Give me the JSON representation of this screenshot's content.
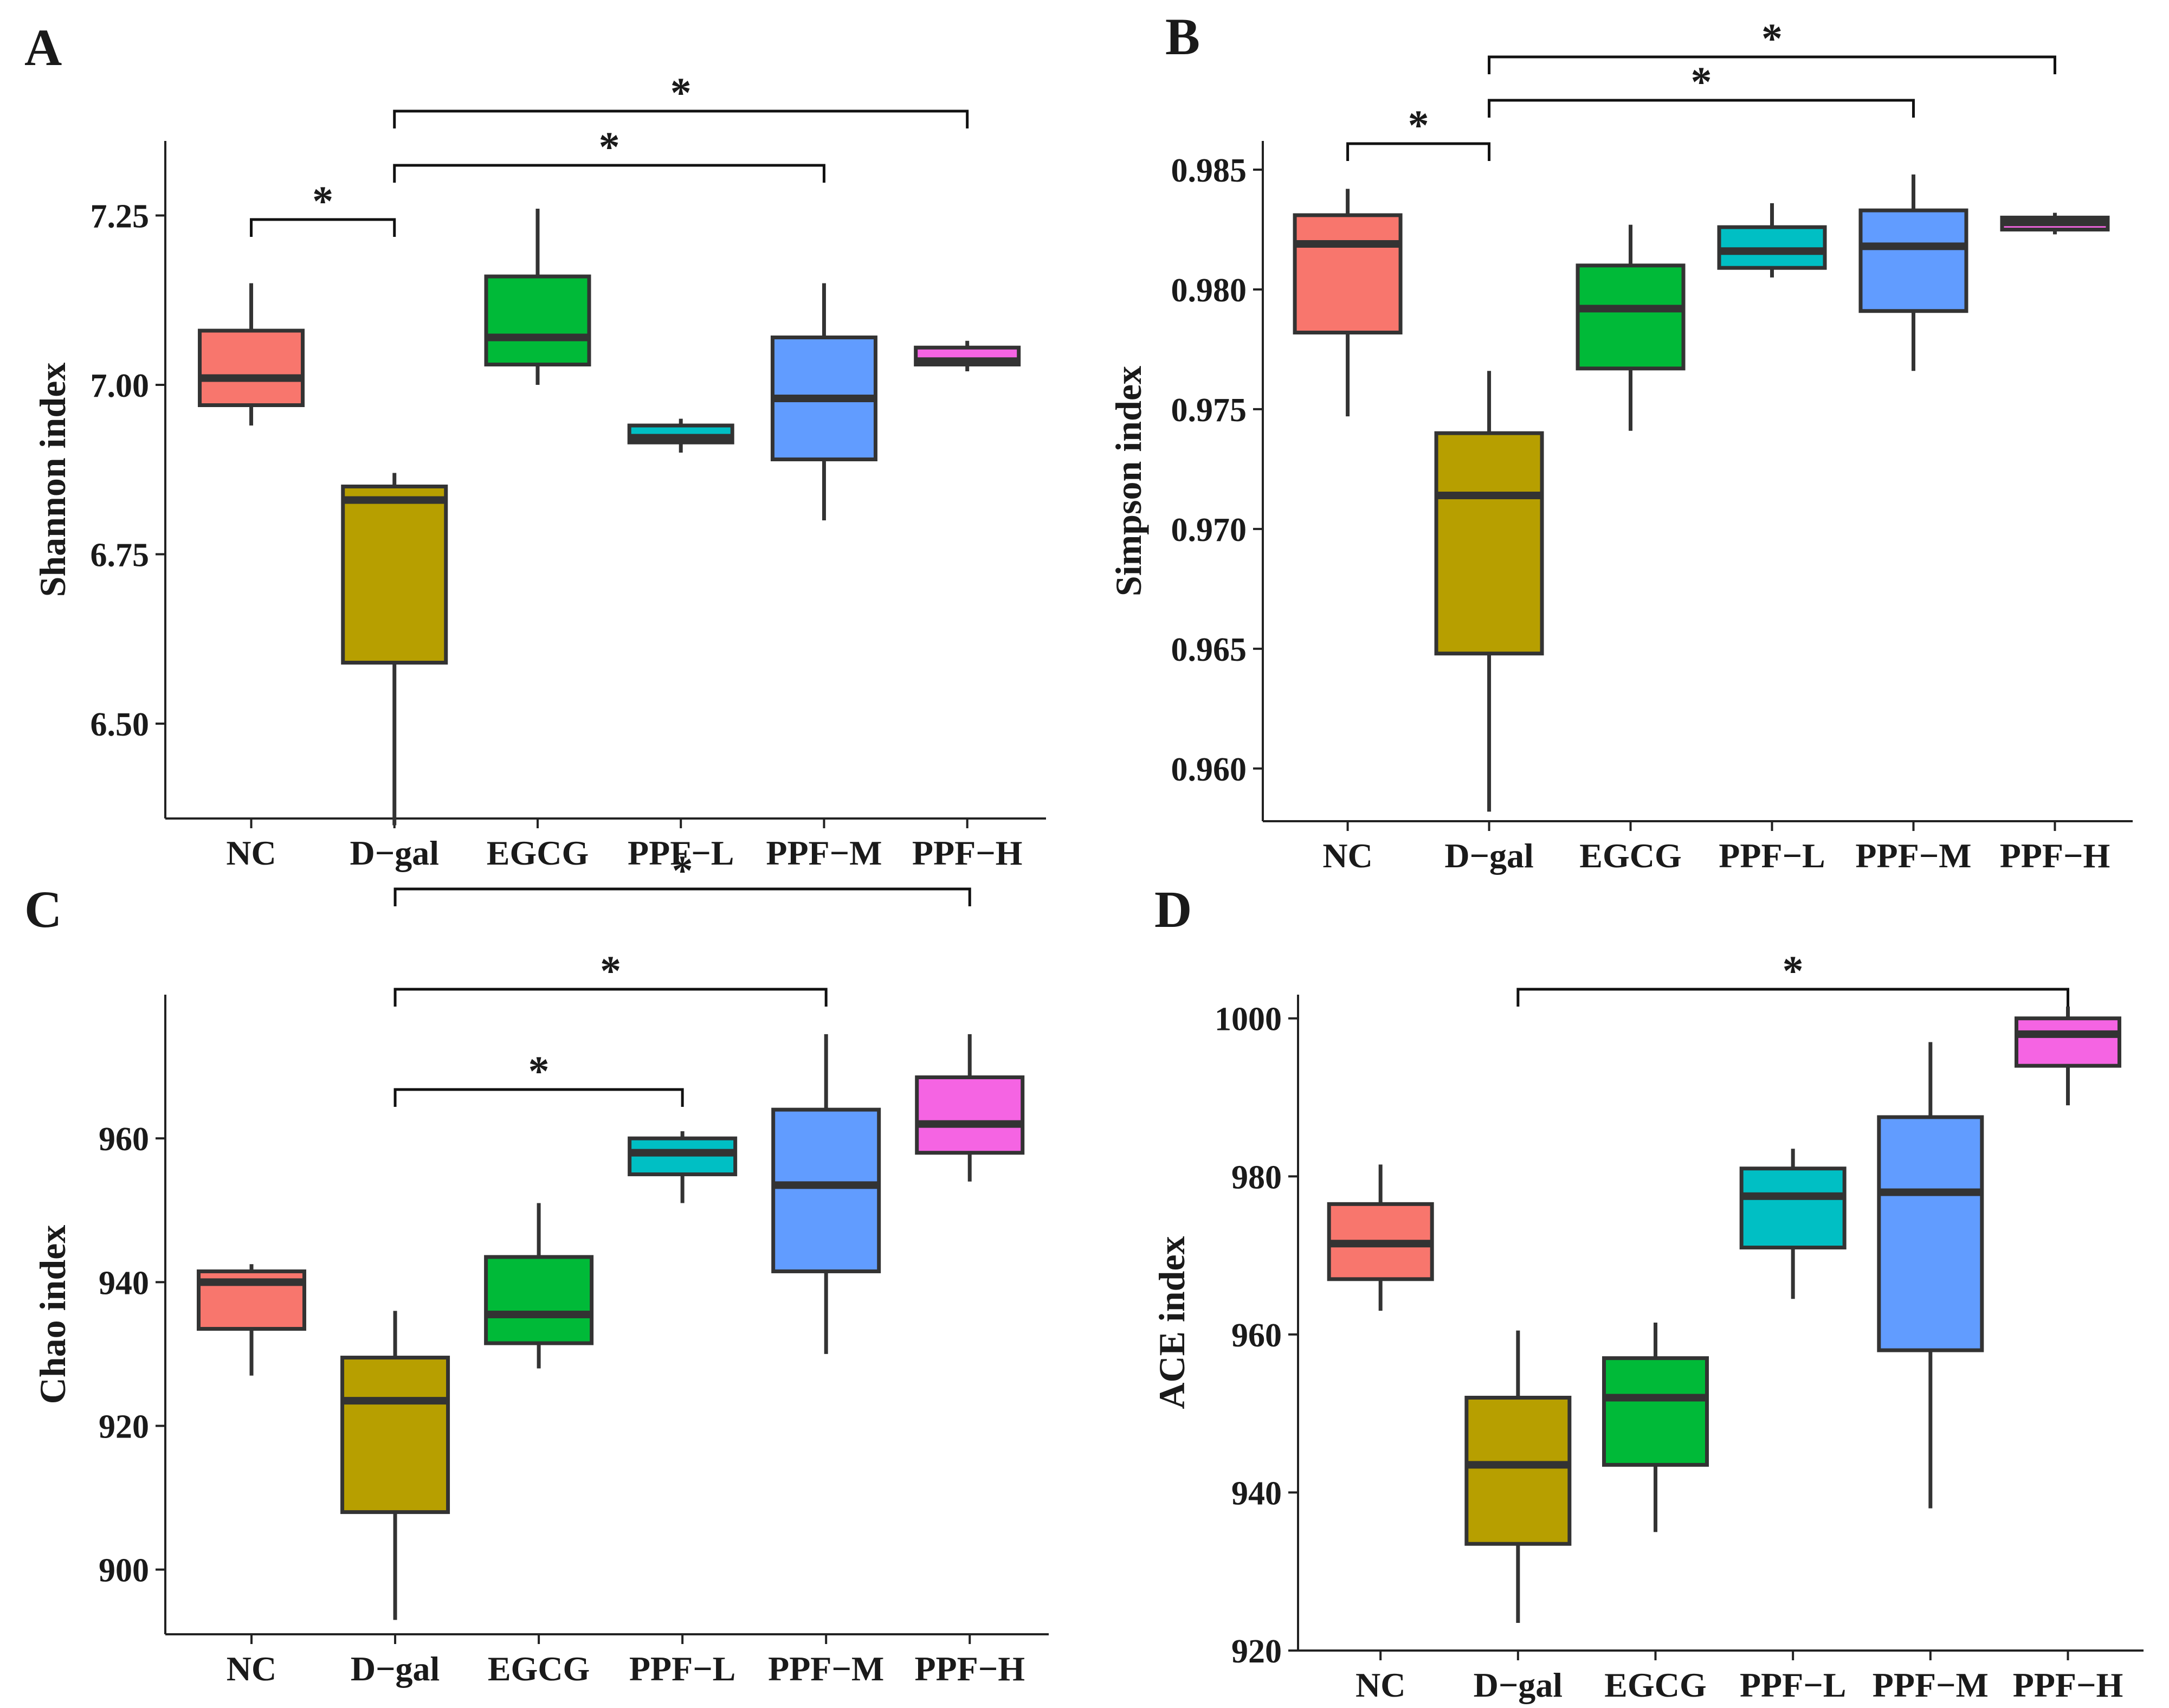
{
  "chart_data": [
    {
      "panel_label": "A",
      "type": "box",
      "title": "",
      "xlabel": "",
      "ylabel": "Shannon index",
      "categories": [
        "NC",
        "D−gal",
        "EGCG",
        "PPF−L",
        "PPF−M",
        "PPF−H"
      ],
      "colors": [
        "#F8766D",
        "#B79F00",
        "#00BA38",
        "#00BFC4",
        "#619CFF",
        "#F564E3"
      ],
      "ylim": [
        6.36,
        7.36
      ],
      "yticks": [
        6.5,
        6.75,
        7.0,
        7.25
      ],
      "ytick_labels": [
        "6.50",
        "6.75",
        "7.00",
        "7.25"
      ],
      "boxes": [
        {
          "min": 6.94,
          "q1": 6.97,
          "median": 7.01,
          "q3": 7.08,
          "max": 7.15
        },
        {
          "min": 6.35,
          "q1": 6.59,
          "median": 6.83,
          "q3": 6.85,
          "max": 6.87
        },
        {
          "min": 7.0,
          "q1": 7.03,
          "median": 7.07,
          "q3": 7.16,
          "max": 7.26
        },
        {
          "min": 6.9,
          "q1": 6.915,
          "median": 6.922,
          "q3": 6.94,
          "max": 6.95
        },
        {
          "min": 6.8,
          "q1": 6.89,
          "median": 6.98,
          "q3": 7.07,
          "max": 7.15
        },
        {
          "min": 7.02,
          "q1": 7.03,
          "median": 7.035,
          "q3": 7.055,
          "max": 7.065
        }
      ],
      "significance": [
        {
          "from": 0,
          "to": 1,
          "level": 1,
          "label": "*"
        },
        {
          "from": 1,
          "to": 4,
          "level": 2,
          "label": "*"
        },
        {
          "from": 1,
          "to": 5,
          "level": 3,
          "label": "*"
        }
      ]
    },
    {
      "panel_label": "B",
      "type": "box",
      "title": "",
      "xlabel": "",
      "ylabel": "Simpson index",
      "categories": [
        "NC",
        "D−gal",
        "EGCG",
        "PPF−L",
        "PPF−M",
        "PPF−H"
      ],
      "colors": [
        "#F8766D",
        "#B79F00",
        "#00BA38",
        "#00BFC4",
        "#619CFF",
        "#F564E3"
      ],
      "ylim": [
        0.9578,
        0.9862
      ],
      "yticks": [
        0.96,
        0.965,
        0.97,
        0.975,
        0.98,
        0.985
      ],
      "ytick_labels": [
        "0.960",
        "0.965",
        "0.970",
        "0.975",
        "0.980",
        "0.985"
      ],
      "boxes": [
        {
          "min": 0.9747,
          "q1": 0.9782,
          "median": 0.9819,
          "q3": 0.9831,
          "max": 0.9842
        },
        {
          "min": 0.9582,
          "q1": 0.9648,
          "median": 0.9714,
          "q3": 0.974,
          "max": 0.9766
        },
        {
          "min": 0.9741,
          "q1": 0.9767,
          "median": 0.9792,
          "q3": 0.981,
          "max": 0.9827
        },
        {
          "min": 0.9805,
          "q1": 0.9809,
          "median": 0.9816,
          "q3": 0.9826,
          "max": 0.9836
        },
        {
          "min": 0.9766,
          "q1": 0.9791,
          "median": 0.9818,
          "q3": 0.9833,
          "max": 0.9848
        },
        {
          "min": 0.9823,
          "q1": 0.9825,
          "median": 0.9828,
          "q3": 0.983,
          "max": 0.9832
        }
      ],
      "significance": [
        {
          "from": 0,
          "to": 1,
          "level": 1,
          "label": "*"
        },
        {
          "from": 1,
          "to": 4,
          "level": 2,
          "label": "*"
        },
        {
          "from": 1,
          "to": 5,
          "level": 3,
          "label": "*"
        }
      ]
    },
    {
      "panel_label": "C",
      "type": "box",
      "title": "",
      "xlabel": "",
      "ylabel": "Chao index",
      "categories": [
        "NC",
        "D−gal",
        "EGCG",
        "PPF−L",
        "PPF−M",
        "PPF−H"
      ],
      "colors": [
        "#F8766D",
        "#B79F00",
        "#00BA38",
        "#00BFC4",
        "#619CFF",
        "#F564E3"
      ],
      "ylim": [
        891,
        980
      ],
      "yticks": [
        900,
        920,
        940,
        960
      ],
      "ytick_labels": [
        "900",
        "920",
        "940",
        "960"
      ],
      "boxes": [
        {
          "min": 927,
          "q1": 933.5,
          "median": 940,
          "q3": 941.5,
          "max": 942.5
        },
        {
          "min": 893,
          "q1": 908,
          "median": 923.5,
          "q3": 929.5,
          "max": 936
        },
        {
          "min": 928,
          "q1": 931.5,
          "median": 935.5,
          "q3": 943.5,
          "max": 951
        },
        {
          "min": 951,
          "q1": 955,
          "median": 958,
          "q3": 960,
          "max": 961
        },
        {
          "min": 930,
          "q1": 941.5,
          "median": 953.5,
          "q3": 964,
          "max": 974.5
        },
        {
          "min": 954,
          "q1": 958,
          "median": 962,
          "q3": 968.5,
          "max": 974.5
        }
      ],
      "significance": [
        {
          "from": 1,
          "to": 3,
          "level": 1,
          "label": "*"
        },
        {
          "from": 1,
          "to": 4,
          "level": 2,
          "label": "*"
        },
        {
          "from": 1,
          "to": 5,
          "level": 3,
          "label": "*"
        }
      ]
    },
    {
      "panel_label": "D",
      "type": "box",
      "title": "",
      "xlabel": "",
      "ylabel": "ACE index",
      "categories": [
        "NC",
        "D−gal",
        "EGCG",
        "PPF−L",
        "PPF−M",
        "PPF−H"
      ],
      "colors": [
        "#F8766D",
        "#B79F00",
        "#00BA38",
        "#00BFC4",
        "#619CFF",
        "#F564E3"
      ],
      "ylim": [
        920,
        1003
      ],
      "yticks": [
        920,
        940,
        960,
        980,
        1000
      ],
      "ytick_labels": [
        "920",
        "940",
        "960",
        "980",
        "1000"
      ],
      "boxes": [
        {
          "min": 963,
          "q1": 967,
          "median": 971.5,
          "q3": 976.5,
          "max": 981.5
        },
        {
          "min": 923.5,
          "q1": 933.5,
          "median": 943.5,
          "q3": 952,
          "max": 960.5
        },
        {
          "min": 935,
          "q1": 943.5,
          "median": 952,
          "q3": 957,
          "max": 961.5
        },
        {
          "min": 964.5,
          "q1": 971,
          "median": 977.5,
          "q3": 981,
          "max": 983.5
        },
        {
          "min": 938,
          "q1": 958,
          "median": 978,
          "q3": 987.5,
          "max": 997
        },
        {
          "min": 989,
          "q1": 994,
          "median": 998,
          "q3": 1000,
          "max": 1001.5
        }
      ],
      "significance": [
        {
          "from": 1,
          "to": 5,
          "level": 1,
          "label": "*"
        }
      ]
    }
  ]
}
